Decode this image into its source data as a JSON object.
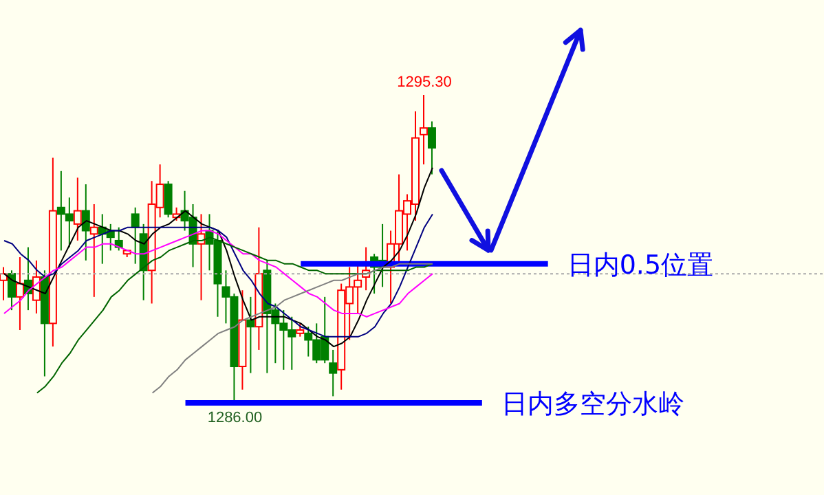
{
  "chart_data": {
    "type": "candlestick",
    "tick_labels": false,
    "categories": [
      null,
      null,
      null,
      null,
      null,
      null,
      null,
      null,
      null,
      null,
      null,
      null,
      null,
      null,
      null,
      null,
      null,
      null,
      null,
      null,
      null,
      null,
      null,
      null,
      null,
      null,
      null,
      null,
      null,
      null,
      null,
      null,
      null,
      null,
      null,
      null,
      null,
      null,
      null,
      null,
      null,
      null,
      null,
      null,
      null,
      null,
      null,
      null,
      null,
      null,
      null,
      null,
      null
    ],
    "ohlc": [
      [
        1289.7,
        1290.1,
        1289.1,
        1289.9
      ],
      [
        1289.9,
        1290.0,
        1288.8,
        1289.2
      ],
      [
        1289.2,
        1290.4,
        1288.2,
        1289.6
      ],
      [
        1289.7,
        1290.7,
        1288.8,
        1289.3
      ],
      [
        1289.1,
        1290.3,
        1288.7,
        1289.8
      ],
      [
        1289.8,
        1290.0,
        1286.8,
        1288.4
      ],
      [
        1288.4,
        1293.4,
        1287.7,
        1291.8
      ],
      [
        1291.9,
        1293.0,
        1290.6,
        1291.7
      ],
      [
        1291.7,
        1292.2,
        1290.7,
        1291.5
      ],
      [
        1291.4,
        1292.8,
        1290.9,
        1291.8
      ],
      [
        1291.8,
        1292.6,
        1290.3,
        1291.2
      ],
      [
        1291.1,
        1292.0,
        1289.2,
        1291.3
      ],
      [
        1291.3,
        1291.7,
        1290.2,
        1291.1
      ],
      [
        1291.2,
        1291.4,
        1290.6,
        1291.0
      ],
      [
        1290.9,
        1291.3,
        1290.6,
        1290.7
      ],
      [
        1290.5,
        1290.6,
        1290.4,
        1290.6
      ],
      [
        1291.7,
        1291.9,
        1290.2,
        1291.3
      ],
      [
        1291.1,
        1291.4,
        1289.1,
        1290.0
      ],
      [
        1290.0,
        1292.7,
        1289.0,
        1292.0
      ],
      [
        1291.9,
        1293.2,
        1291.6,
        1292.6
      ],
      [
        1292.6,
        1292.7,
        1291.6,
        1291.7
      ],
      [
        1291.6,
        1291.9,
        1291.5,
        1291.7
      ],
      [
        1291.8,
        1292.4,
        1291.2,
        1291.5
      ],
      [
        1291.6,
        1292.0,
        1290.1,
        1290.8
      ],
      [
        1290.8,
        1291.7,
        1289.1,
        1291.1
      ],
      [
        1291.2,
        1291.7,
        1290.0,
        1290.8
      ],
      [
        1290.9,
        1291.2,
        1288.6,
        1289.6
      ],
      [
        1289.5,
        1290.0,
        1288.4,
        1289.2
      ],
      [
        1289.2,
        1289.3,
        1286.0,
        1287.1
      ],
      [
        1287.1,
        1289.4,
        1286.4,
        1288.5
      ],
      [
        1288.5,
        1289.2,
        1286.9,
        1288.3
      ],
      [
        1288.3,
        1291.3,
        1287.6,
        1289.9
      ],
      [
        1290.0,
        1290.3,
        1286.9,
        1288.7
      ],
      [
        1288.8,
        1289.0,
        1287.2,
        1288.4
      ],
      [
        1288.4,
        1288.8,
        1287.0,
        1288.2
      ],
      [
        1288.2,
        1288.6,
        1287.0,
        1288.0
      ],
      [
        1288.1,
        1288.4,
        1288.0,
        1288.2
      ],
      [
        1288.1,
        1288.3,
        1287.4,
        1287.9
      ],
      [
        1287.9,
        1288.4,
        1287.2,
        1287.3
      ],
      [
        1288.0,
        1289.2,
        1287.2,
        1287.3
      ],
      [
        1287.2,
        1287.6,
        1286.2,
        1286.9
      ],
      [
        1287.0,
        1289.6,
        1286.4,
        1289.4
      ],
      [
        1289.0,
        1290.1,
        1287.9,
        1289.5
      ],
      [
        1289.5,
        1290.2,
        1288.7,
        1289.7
      ],
      [
        1289.8,
        1290.7,
        1289.4,
        1290.0
      ],
      [
        1290.4,
        1290.5,
        1289.3,
        1290.1
      ],
      [
        1290.3,
        1291.4,
        1289.5,
        1290.1
      ],
      [
        1290.1,
        1291.2,
        1289.0,
        1290.8
      ],
      [
        1290.8,
        1292.9,
        1290.2,
        1291.8
      ],
      [
        1291.7,
        1292.3,
        1290.6,
        1292.1
      ],
      [
        1292.0,
        1294.8,
        1291.5,
        1294.0
      ],
      [
        1294.1,
        1295.3,
        1293.2,
        1294.3
      ],
      [
        1294.3,
        1294.5,
        1292.9,
        1293.7
      ]
    ],
    "colors": [
      "#ff0000",
      "#008000",
      "#ff0000",
      "#008000",
      "#ff0000",
      "#008000",
      "#ff0000",
      "#008000",
      "#008000",
      "#ff0000",
      "#008000",
      "#ff0000",
      "#008000",
      "#008000",
      "#008000",
      "#ff0000",
      "#008000",
      "#008000",
      "#ff0000",
      "#ff0000",
      "#008000",
      "#ff0000",
      "#008000",
      "#008000",
      "#ff0000",
      "#008000",
      "#008000",
      "#008000",
      "#008000",
      "#ff0000",
      "#008000",
      "#ff0000",
      "#008000",
      "#008000",
      "#008000",
      "#008000",
      "#ff0000",
      "#008000",
      "#008000",
      "#008000",
      "#008000",
      "#ff0000",
      "#ff0000",
      "#ff0000",
      "#ff0000",
      "#008000",
      "#008000",
      "#ff0000",
      "#ff0000",
      "#ff0000",
      "#ff0000",
      "#ff0000",
      "#008000"
    ],
    "series": [
      {
        "type": "line",
        "color": "#000000",
        "values": [
          1289.9,
          1289.7,
          1289.6,
          1289.5,
          1289.4,
          1289.3,
          1289.8,
          1290.3,
          1290.8,
          1291.3,
          1291.5,
          1291.4,
          1291.3,
          1291.2,
          1291.2,
          1291.1,
          1290.9,
          1290.8,
          1291.1,
          1291.3,
          1291.4,
          1291.6,
          1291.8,
          1291.6,
          1291.4,
          1291.3,
          1291.2,
          1290.6,
          1289.8,
          1289.1,
          1288.5,
          1288.6,
          1288.6,
          1288.6,
          1288.6,
          1288.5,
          1288.4,
          1288.2,
          1288.0,
          1287.9,
          1287.7,
          1287.8,
          1288.0,
          1288.5,
          1289.1,
          1289.6,
          1290.1,
          1290.3,
          1290.6,
          1291.1,
          1291.7,
          1292.5,
          1293.1
        ]
      },
      {
        "type": "line",
        "color": "#000080",
        "values": [
          1290.9,
          1290.8,
          1290.5,
          1290.3,
          1290.0,
          1289.8,
          1289.9,
          1290.2,
          1290.4,
          1290.6,
          1290.9,
          1291.0,
          1291.1,
          1291.2,
          1291.2,
          1291.3,
          1291.3,
          1291.3,
          1291.3,
          1291.3,
          1291.3,
          1291.3,
          1291.3,
          1291.3,
          1291.3,
          1291.3,
          1291.2,
          1291.0,
          1290.5,
          1290.0,
          1289.7,
          1289.3,
          1289.0,
          1288.9,
          1288.7,
          1288.5,
          1288.3,
          1288.2,
          1288.1,
          1288.0,
          1288.0,
          1288.0,
          1288.0,
          1288.0,
          1288.1,
          1288.3,
          1288.7,
          1289.0,
          1289.5,
          1290.1,
          1290.7,
          1291.3,
          1291.7
        ]
      },
      {
        "type": "line",
        "color": "#ff00ff",
        "values": [
          1288.7,
          1288.9,
          1289.1,
          1289.4,
          1289.6,
          1289.8,
          1290.0,
          1290.1,
          1290.3,
          1290.5,
          1290.7,
          1290.7,
          1290.8,
          1290.8,
          1290.7,
          1290.6,
          1290.5,
          1290.5,
          1290.6,
          1290.7,
          1290.8,
          1290.9,
          1291.0,
          1291.1,
          1291.2,
          1291.2,
          1291.1,
          1290.9,
          1290.7,
          1290.5,
          1290.5,
          1290.3,
          1290.2,
          1290.1,
          1289.9,
          1289.7,
          1289.5,
          1289.3,
          1289.2,
          1289.0,
          1288.8,
          1288.7,
          1288.7,
          1288.7,
          1288.6,
          1288.7,
          1288.8,
          1288.9,
          1289.0,
          1289.3,
          1289.5,
          1289.7,
          1289.9
        ]
      },
      {
        "type": "line",
        "color": "#006400",
        "values": [
          null,
          null,
          null,
          null,
          1286.3,
          1286.5,
          1286.8,
          1287.2,
          1287.5,
          1287.9,
          1288.2,
          1288.5,
          1288.8,
          1289.2,
          1289.4,
          1289.7,
          1289.9,
          1290.1,
          1290.3,
          1290.4,
          1290.6,
          1290.7,
          1290.8,
          1290.9,
          1290.9,
          1291.0,
          1290.9,
          1290.8,
          1290.7,
          1290.6,
          1290.5,
          1290.4,
          1290.3,
          1290.3,
          1290.2,
          1290.2,
          1290.1,
          1290.0,
          1290.0,
          1289.9,
          1289.9,
          1289.9,
          1289.9,
          1289.9,
          1289.9,
          1290.0,
          1290.0,
          1290.0,
          1290.0,
          1290.0,
          1290.1,
          1290.1,
          1290.2
        ]
      },
      {
        "type": "line",
        "color": "#808080",
        "values": [
          null,
          null,
          null,
          null,
          null,
          null,
          null,
          null,
          null,
          null,
          null,
          null,
          null,
          null,
          null,
          null,
          null,
          null,
          1286.3,
          1286.5,
          1286.8,
          1287.0,
          1287.3,
          1287.5,
          1287.7,
          1287.9,
          1288.1,
          1288.2,
          1288.3,
          1288.5,
          1288.6,
          1288.7,
          1288.8,
          1288.9,
          1289.1,
          1289.2,
          1289.3,
          1289.4,
          1289.5,
          1289.6,
          1289.7,
          1289.7,
          1289.8,
          1289.9,
          1289.9,
          1290.0,
          1290.1,
          1290.1,
          1290.2,
          1290.2,
          1290.2,
          1290.2,
          1290.2
        ]
      }
    ],
    "ref_lines": [
      {
        "axis": "y",
        "value": 1290.2,
        "label": "日内0.5位置",
        "color": "#0000ff"
      },
      {
        "axis": "y",
        "value": 1286.0,
        "label": "日内多空分水岭",
        "color": "#0000ff"
      },
      {
        "axis": "y",
        "value": 1289.9,
        "color": "#aaaaaa",
        "line_style": "dotted"
      }
    ],
    "annotations": [
      {
        "text": "1295.30",
        "y": 1295.3
      },
      {
        "text": "1286.00",
        "y": 1286.0
      }
    ]
  }
}
